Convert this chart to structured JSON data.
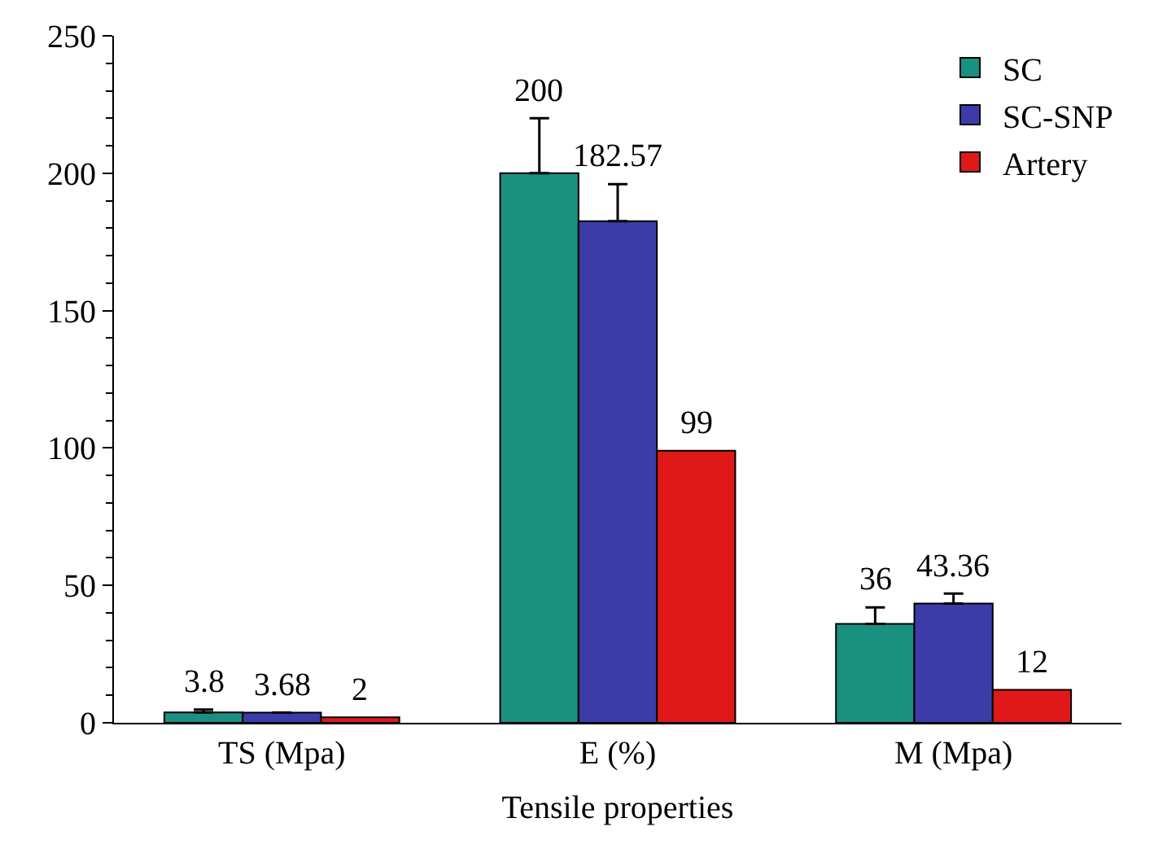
{
  "chart_data": {
    "type": "bar",
    "xlabel": "Tensile properties",
    "categories": [
      "TS (Mpa)",
      "E (%)",
      "M (Mpa)"
    ],
    "series": [
      {
        "name": "SC",
        "color": "#1a9080",
        "values": [
          3.8,
          200,
          36
        ],
        "errors": [
          [
            3.8,
            4.8
          ],
          [
            200,
            220
          ],
          [
            36,
            42
          ]
        ]
      },
      {
        "name": "SC-SNP",
        "color": "#3c3ca8",
        "values": [
          3.68,
          182.57,
          43.36
        ],
        "errors": [
          null,
          [
            182.57,
            196
          ],
          [
            43.36,
            47
          ]
        ]
      },
      {
        "name": "Artery",
        "color": "#e01818",
        "values": [
          2,
          99,
          12
        ]
      }
    ],
    "data_labels": true,
    "ylim": [
      0,
      250
    ],
    "yticks": [
      0,
      50,
      100,
      150,
      200,
      250
    ],
    "legend": "top right"
  }
}
